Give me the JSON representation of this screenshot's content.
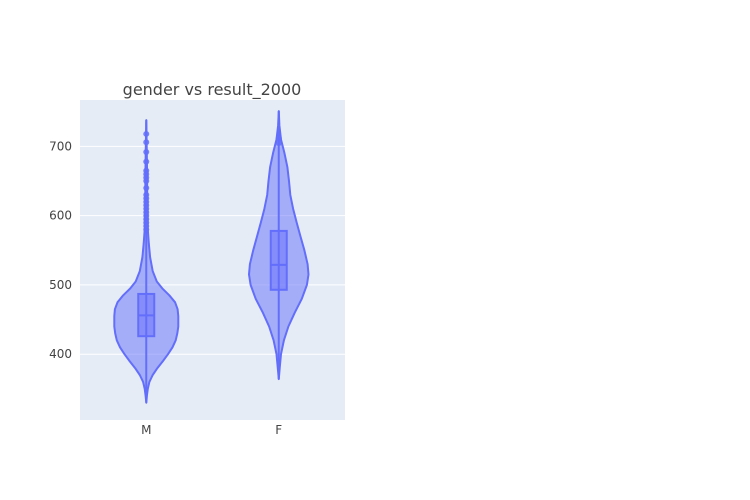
{
  "chart_data": {
    "type": "violin",
    "title": "gender vs result_2000",
    "xlabel": "",
    "ylabel": "",
    "ylim": [
      305,
      767
    ],
    "yticks": [
      400,
      500,
      600,
      700
    ],
    "grid": true,
    "color": "#636efa",
    "plot_background": "#e5ecf6",
    "categories": [
      "M",
      "F"
    ],
    "series": [
      {
        "category": "M",
        "min": 330,
        "q1": 426,
        "median": 456,
        "q3": 487,
        "max": 738,
        "density_profile": [
          [
            330,
            0.0
          ],
          [
            340,
            0.02
          ],
          [
            350,
            0.05
          ],
          [
            360,
            0.1
          ],
          [
            370,
            0.2
          ],
          [
            380,
            0.35
          ],
          [
            390,
            0.52
          ],
          [
            400,
            0.68
          ],
          [
            410,
            0.82
          ],
          [
            420,
            0.92
          ],
          [
            430,
            0.97
          ],
          [
            440,
            1.0
          ],
          [
            455,
            1.0
          ],
          [
            465,
            0.98
          ],
          [
            475,
            0.9
          ],
          [
            485,
            0.72
          ],
          [
            495,
            0.5
          ],
          [
            505,
            0.33
          ],
          [
            520,
            0.2
          ],
          [
            540,
            0.12
          ],
          [
            560,
            0.08
          ],
          [
            580,
            0.05
          ],
          [
            600,
            0.04
          ],
          [
            630,
            0.03
          ],
          [
            660,
            0.025
          ],
          [
            700,
            0.015
          ],
          [
            738,
            0.0
          ]
        ],
        "outliers": [
          580,
          585,
          590,
          595,
          600,
          605,
          610,
          615,
          620,
          625,
          630,
          640,
          650,
          655,
          660,
          665,
          678,
          692,
          706,
          718
        ]
      },
      {
        "category": "F",
        "min": 364,
        "q1": 493,
        "median": 529,
        "q3": 578,
        "max": 751,
        "density_profile": [
          [
            364,
            0.0
          ],
          [
            380,
            0.03
          ],
          [
            400,
            0.07
          ],
          [
            420,
            0.16
          ],
          [
            440,
            0.3
          ],
          [
            460,
            0.5
          ],
          [
            480,
            0.72
          ],
          [
            500,
            0.88
          ],
          [
            515,
            0.93
          ],
          [
            530,
            0.9
          ],
          [
            550,
            0.8
          ],
          [
            570,
            0.68
          ],
          [
            590,
            0.56
          ],
          [
            610,
            0.45
          ],
          [
            630,
            0.36
          ],
          [
            650,
            0.32
          ],
          [
            670,
            0.27
          ],
          [
            690,
            0.18
          ],
          [
            710,
            0.07
          ],
          [
            730,
            0.02
          ],
          [
            751,
            0.0
          ]
        ],
        "outliers": [
          705,
          712
        ]
      }
    ]
  }
}
